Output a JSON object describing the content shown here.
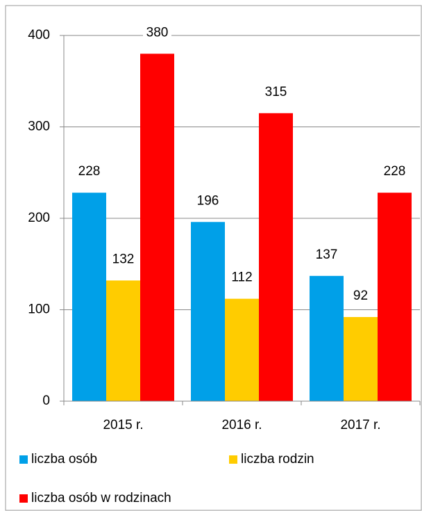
{
  "chart_data": {
    "type": "bar",
    "categories": [
      "2015 r.",
      "2016 r.",
      "2017 r."
    ],
    "series": [
      {
        "name": "liczba osób",
        "color": "#00a0e8",
        "values": [
          228,
          196,
          137
        ]
      },
      {
        "name": "liczba rodzin",
        "color": "#ffcc00",
        "values": [
          132,
          112,
          92
        ]
      },
      {
        "name": "liczba osób w rodzinach",
        "color": "#ff0000",
        "values": [
          380,
          315,
          228
        ]
      }
    ],
    "ylim": [
      0,
      400
    ],
    "yticks": [
      0,
      100,
      200,
      300,
      400
    ],
    "grid": true
  }
}
